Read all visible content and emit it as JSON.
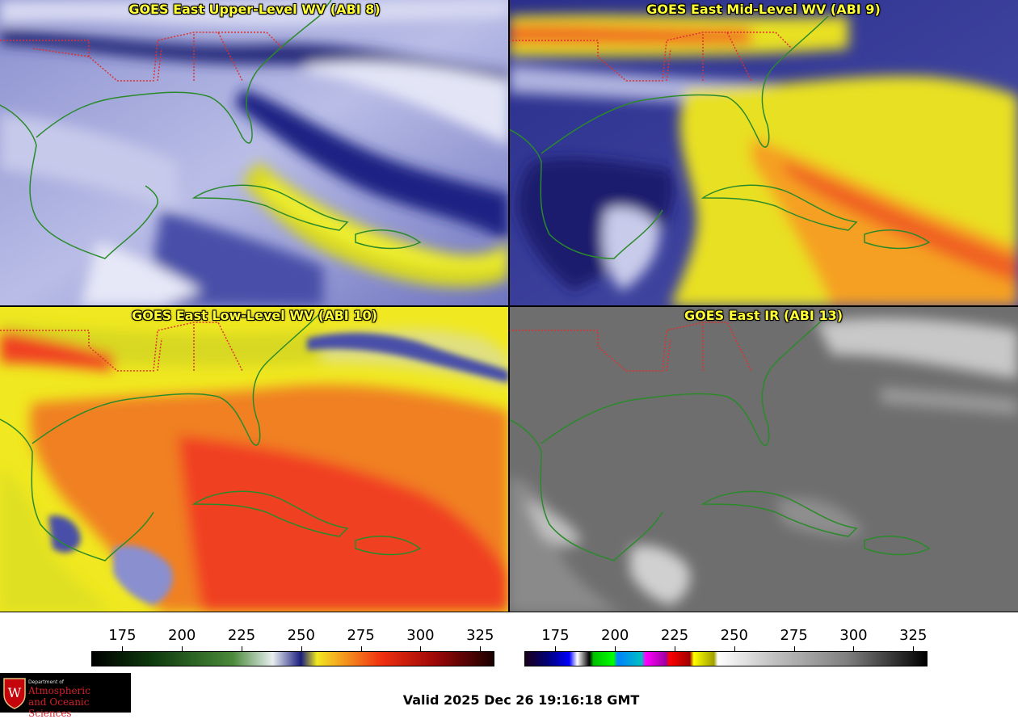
{
  "panels": [
    {
      "title": "GOES East Upper-Level WV (ABI 8)"
    },
    {
      "title": "GOES East Mid-Level WV (ABI 9)"
    },
    {
      "title": "GOES East Low-Level WV (ABI 10)"
    },
    {
      "title": "GOES East IR (ABI 13)"
    }
  ],
  "wv_scale": {
    "ticks": [
      "175",
      "200",
      "225",
      "250",
      "275",
      "300",
      "325"
    ],
    "range": [
      162,
      331
    ]
  },
  "ir_scale": {
    "ticks": [
      "175",
      "200",
      "225",
      "250",
      "275",
      "300",
      "325"
    ],
    "range": [
      162,
      331
    ]
  },
  "logo": {
    "dept": "Department of",
    "line1": "Atmospheric",
    "line2": "and Oceanic Sciences"
  },
  "valid_time": "Valid 2025 Dec 26 19:16:18 GMT",
  "colors": {
    "state_borders": "#e03030",
    "coastline": "#2a8a2a",
    "title": "#ffff33"
  }
}
